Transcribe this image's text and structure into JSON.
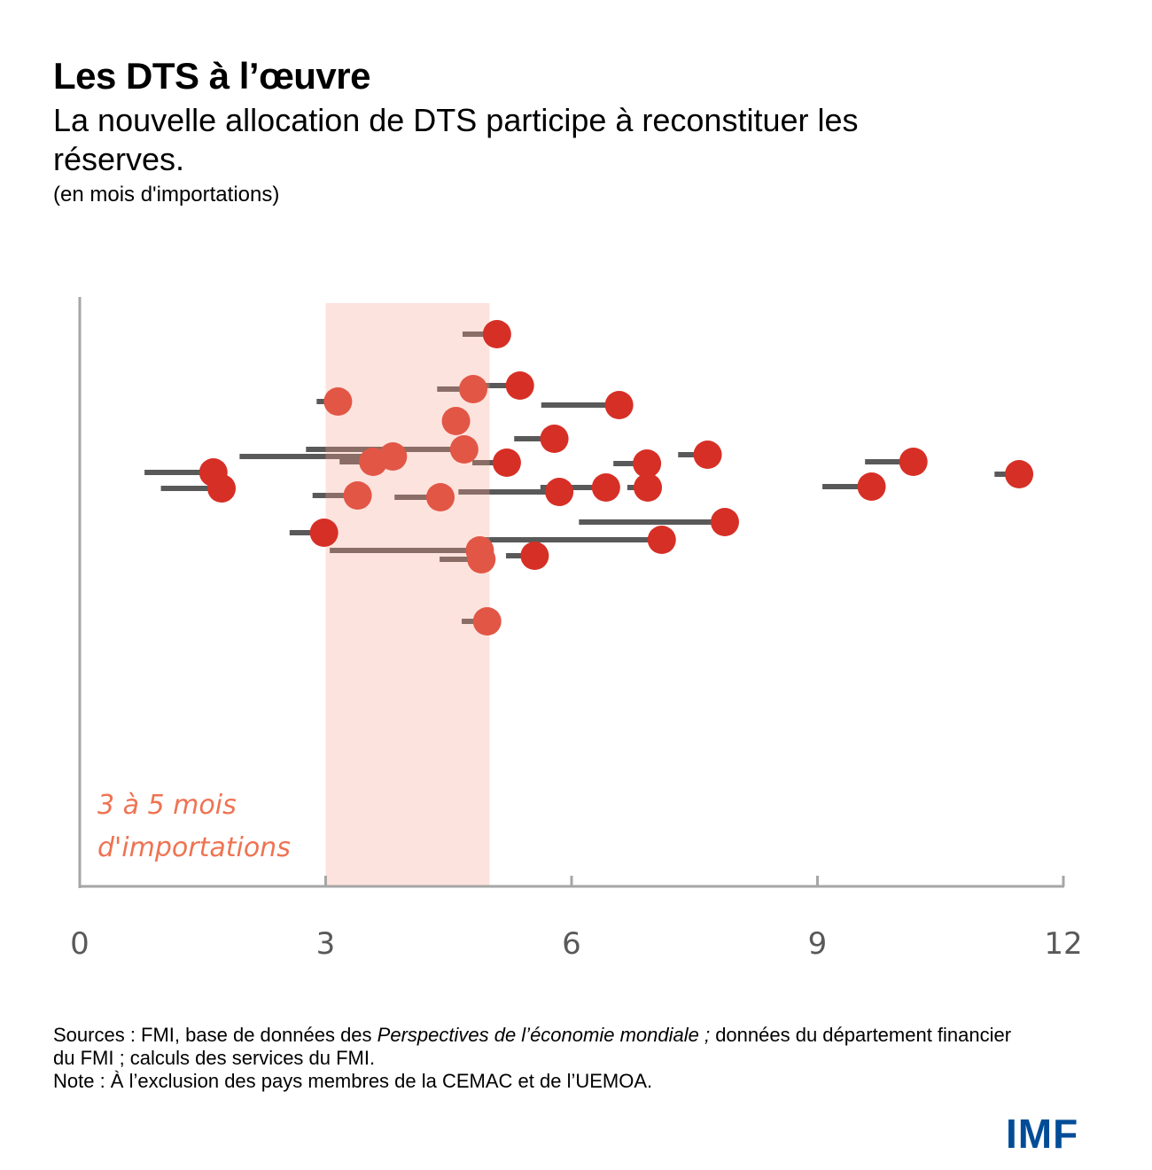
{
  "header": {
    "title": "Les DTS à l’œuvre",
    "subtitle": "La nouvelle allocation de DTS participe à reconstituer les réserves.",
    "unit": "(en mois d'importations)"
  },
  "footer": {
    "sources_prefix": "Sources : FMI, base de données des ",
    "sources_italic": "Perspectives de l’économie mondiale ;",
    "sources_suffix": " données du département financier du FMI ; calculs des services du FMI.",
    "note": "Note : À l’exclusion des pays membres de la CEMAC et de l’UEMOA.",
    "logo": "IMF"
  },
  "colors": {
    "dot": "#d62f26",
    "dot_in_band": "#e25646",
    "line": "#595959",
    "line_in_band": "#8a6d66",
    "band": "#fde3dd",
    "band_label": "#ee7352",
    "axis": "#a6a6a6",
    "logo": "#004c97"
  },
  "chart_data": {
    "type": "dumbbell",
    "title": "Les DTS à l’œuvre",
    "xlabel": "",
    "ylabel": "",
    "xlim": [
      0,
      12
    ],
    "xticks": [
      0,
      3,
      6,
      9,
      12
    ],
    "xtick_labels": [
      "0",
      "3",
      "6",
      "9",
      "12"
    ],
    "grid": false,
    "band": {
      "from": 3,
      "to": 5,
      "label_line1": "3 à 5 mois",
      "label_line2": "d'importations"
    },
    "series_note": "Each country: line from reserves before allocation to dot after allocation (months of imports)",
    "points": [
      {
        "row": 1.0,
        "before": 4.67,
        "after": 5.09
      },
      {
        "row": 3.9,
        "before": 4.8,
        "after": 5.37
      },
      {
        "row": 4.1,
        "before": 4.36,
        "after": 4.8
      },
      {
        "row": 4.8,
        "before": 2.89,
        "after": 3.15
      },
      {
        "row": 5.0,
        "before": 5.63,
        "after": 6.58
      },
      {
        "row": 5.9,
        "before": 4.59,
        "after": 4.59
      },
      {
        "row": 6.9,
        "before": 5.3,
        "after": 5.79
      },
      {
        "row": 7.5,
        "before": 2.76,
        "after": 4.69
      },
      {
        "row": 7.8,
        "before": 7.3,
        "after": 7.66
      },
      {
        "row": 7.9,
        "before": 1.95,
        "after": 3.82
      },
      {
        "row": 8.2,
        "before": 3.17,
        "after": 3.58
      },
      {
        "row": 8.2,
        "before": 9.58,
        "after": 10.17
      },
      {
        "row": 8.25,
        "before": 4.79,
        "after": 5.21
      },
      {
        "row": 8.3,
        "before": 6.51,
        "after": 6.92
      },
      {
        "row": 8.8,
        "before": 0.79,
        "after": 1.63
      },
      {
        "row": 8.9,
        "before": 11.16,
        "after": 11.46
      },
      {
        "row": 9.6,
        "before": 9.06,
        "after": 9.66
      },
      {
        "row": 9.65,
        "before": 5.62,
        "after": 6.42
      },
      {
        "row": 9.65,
        "before": 6.68,
        "after": 6.93
      },
      {
        "row": 9.7,
        "before": 0.99,
        "after": 1.73
      },
      {
        "row": 9.9,
        "before": 4.62,
        "after": 5.85
      },
      {
        "row": 10.1,
        "before": 2.84,
        "after": 3.39
      },
      {
        "row": 10.2,
        "before": 3.84,
        "after": 4.4
      },
      {
        "row": 11.6,
        "before": 6.09,
        "after": 7.87
      },
      {
        "row": 12.2,
        "before": 2.56,
        "after": 2.98
      },
      {
        "row": 12.6,
        "before": 4.83,
        "after": 7.1
      },
      {
        "row": 13.2,
        "before": 3.05,
        "after": 4.88
      },
      {
        "row": 13.5,
        "before": 5.2,
        "after": 5.55
      },
      {
        "row": 13.7,
        "before": 4.39,
        "after": 4.9
      },
      {
        "row": 17.2,
        "before": 4.66,
        "after": 4.97
      }
    ],
    "row_range": [
      0,
      18
    ]
  }
}
